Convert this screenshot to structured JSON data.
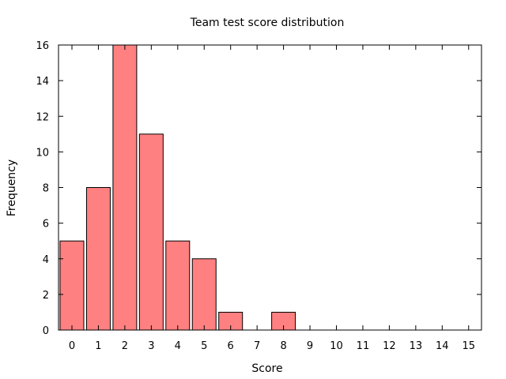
{
  "chart_data": {
    "type": "bar",
    "title": "Team test score distribution",
    "xlabel": "Score",
    "ylabel": "Frequency",
    "categories": [
      "0",
      "1",
      "2",
      "3",
      "4",
      "5",
      "6",
      "7",
      "8",
      "9",
      "10",
      "11",
      "12",
      "13",
      "14",
      "15"
    ],
    "values": [
      5,
      8,
      16,
      11,
      5,
      4,
      1,
      0,
      1,
      0,
      0,
      0,
      0,
      0,
      0,
      0
    ],
    "ylim": [
      0,
      16
    ],
    "yticks": [
      0,
      2,
      4,
      6,
      8,
      10,
      12,
      14,
      16
    ],
    "grid": false,
    "bar_color": "#ff8080",
    "bar_edge_color": "#000000"
  }
}
